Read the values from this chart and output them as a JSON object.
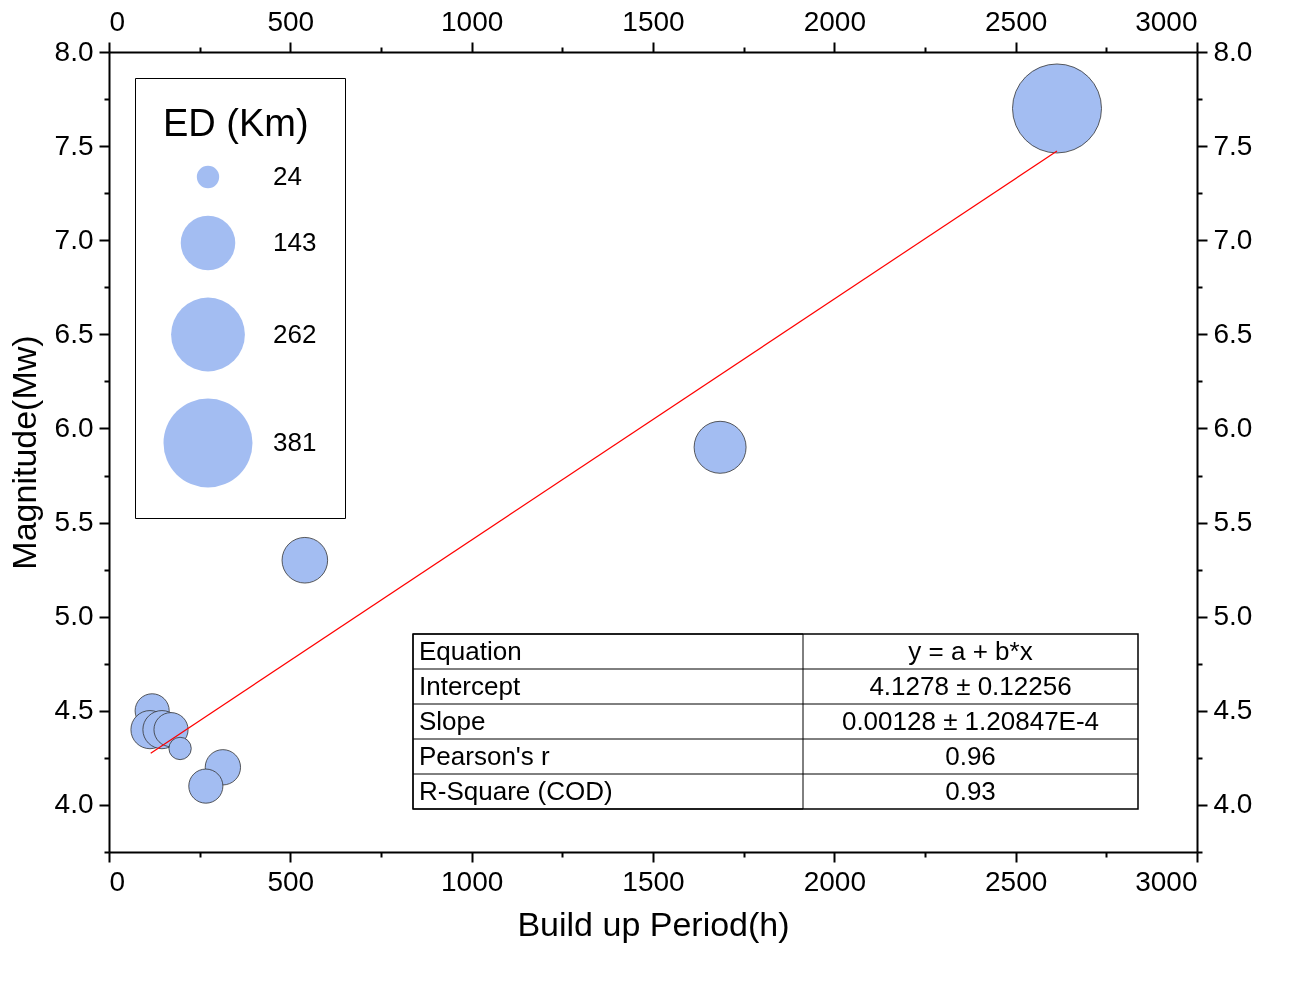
{
  "chart_data": {
    "type": "bubble",
    "xlabel": "Build up Period(h)",
    "ylabel": "Magnitude(Mw)",
    "legend_title": "ED (Km)",
    "xlim": [
      0,
      3000
    ],
    "x2lim": [
      0,
      3000
    ],
    "ylim": [
      3.75,
      8.0
    ],
    "y2lim": [
      3.75,
      8.0
    ],
    "xticks": [
      0,
      {
        "value": 250,
        "label": null
      },
      500,
      {
        "value": 750,
        "label": null
      },
      1000,
      {
        "value": 1250,
        "label": null
      },
      1500,
      {
        "value": 1750,
        "label": null
      },
      2000,
      {
        "value": 2250,
        "label": null
      },
      2500,
      {
        "value": 2750,
        "label": null
      },
      3000
    ],
    "x2ticks": [
      0,
      {
        "value": 250,
        "label": null
      },
      500,
      {
        "value": 750,
        "label": null
      },
      1000,
      {
        "value": 1250,
        "label": null
      },
      1500,
      {
        "value": 1750,
        "label": null
      },
      2000,
      {
        "value": 2250,
        "label": null
      },
      2500,
      {
        "value": 2750,
        "label": null
      },
      3000
    ],
    "yticks": [
      {
        "value": 3.75,
        "label": null
      },
      {
        "value": 4.0,
        "label": "4.0"
      },
      {
        "value": 4.25,
        "label": null
      },
      4.5,
      {
        "value": 4.75,
        "label": null
      },
      {
        "value": 5.0,
        "label": "5.0"
      },
      {
        "value": 5.25,
        "label": null
      },
      5.5,
      {
        "value": 5.75,
        "label": null
      },
      {
        "value": 6.0,
        "label": "6.0"
      },
      {
        "value": 6.25,
        "label": null
      },
      6.5,
      {
        "value": 6.75,
        "label": null
      },
      {
        "value": 7.0,
        "label": "7.0"
      },
      {
        "value": 7.25,
        "label": null
      },
      7.5,
      {
        "value": 7.75,
        "label": null
      },
      {
        "value": 8.0,
        "label": "8.0"
      }
    ],
    "y2ticks": [
      {
        "value": 3.75,
        "label": null
      },
      {
        "value": 4.0,
        "label": "4.0"
      },
      {
        "value": 4.25,
        "label": null
      },
      4.5,
      {
        "value": 4.75,
        "label": null
      },
      {
        "value": 5.0,
        "label": "5.0"
      },
      {
        "value": 5.25,
        "label": null
      },
      5.5,
      {
        "value": 5.75,
        "label": null
      },
      {
        "value": 6.0,
        "label": "6.0"
      },
      {
        "value": 6.25,
        "label": null
      },
      6.5,
      {
        "value": 6.75,
        "label": null
      },
      {
        "value": 7.0,
        "label": "7.0"
      },
      {
        "value": 7.25,
        "label": null
      },
      7.5,
      {
        "value": 7.75,
        "label": null
      },
      {
        "value": 8.0,
        "label": "8.0"
      }
    ],
    "size_legend": [
      24,
      143,
      262,
      381
    ],
    "series": [
      {
        "type": "bubble",
        "color": "#a3bdf2",
        "x": [
          119,
          113,
          146,
          171,
          196,
          314,
          267,
          540,
          1685,
          2614
        ],
        "values": [
          4.5,
          4.4,
          4.4,
          4.4,
          4.3,
          4.2,
          4.1,
          5.3,
          5.9,
          7.7
        ],
        "sizes": [
          56,
          70,
          70,
          56,
          24,
          60,
          56,
          100,
          130,
          381
        ]
      },
      {
        "type": "line",
        "marker": "none",
        "color": "#ff0000",
        "x": [
          115,
          2614
        ],
        "values": [
          4.275,
          7.474
        ]
      }
    ],
    "annotations": [
      "Equation",
      "y = a + b*x",
      "Intercept",
      "4.1278 ± 0.12256",
      "Slope",
      "0.00128 ± 1.20847E-4",
      "Pearson's r",
      "0.96",
      "R-Square (COD)",
      "0.93"
    ]
  }
}
